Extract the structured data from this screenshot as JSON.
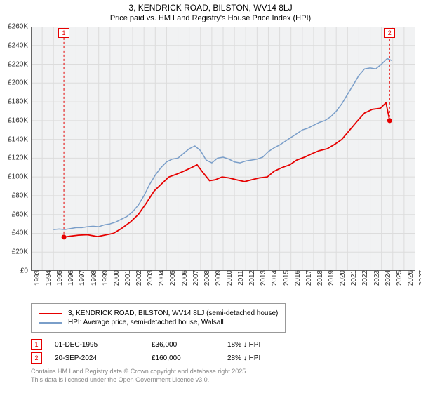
{
  "title": "3, KENDRICK ROAD, BILSTON, WV14 8LJ",
  "subtitle": "Price paid vs. HM Land Registry's House Price Index (HPI)",
  "chart": {
    "type": "line",
    "background_color": "#f1f2f3",
    "plot_border_color": "#666666",
    "grid_color": "#dcdcdc",
    "axis_font_size": 10,
    "title_font_size": 12,
    "y_axis": {
      "min": 0,
      "max": 260000,
      "tick_step": 20000,
      "format_prefix": "£",
      "format_suffix": "K",
      "format_divisor": 1000
    },
    "x_axis": {
      "min": 1993,
      "max": 2027,
      "tick_step": 1,
      "rotation": -90
    },
    "series": [
      {
        "name": "property",
        "label": "3, KENDRICK ROAD, BILSTON, WV14 8LJ (semi-detached house)",
        "color": "#e60000",
        "line_width": 1.8,
        "data": [
          [
            1995.92,
            36000
          ],
          [
            1996.5,
            37000
          ],
          [
            1997.2,
            38000
          ],
          [
            1998.0,
            38500
          ],
          [
            1998.9,
            36500
          ],
          [
            1999.5,
            38000
          ],
          [
            2000.3,
            40000
          ],
          [
            2001.0,
            45000
          ],
          [
            2001.8,
            52000
          ],
          [
            2002.5,
            60000
          ],
          [
            2003.2,
            72000
          ],
          [
            2003.9,
            85000
          ],
          [
            2004.5,
            92000
          ],
          [
            2005.2,
            100000
          ],
          [
            2005.9,
            103000
          ],
          [
            2006.5,
            106000
          ],
          [
            2007.2,
            110000
          ],
          [
            2007.7,
            113000
          ],
          [
            2008.2,
            105000
          ],
          [
            2008.8,
            96000
          ],
          [
            2009.3,
            97000
          ],
          [
            2009.9,
            100000
          ],
          [
            2010.5,
            99000
          ],
          [
            2011.2,
            97000
          ],
          [
            2011.9,
            95000
          ],
          [
            2012.5,
            97000
          ],
          [
            2013.2,
            99000
          ],
          [
            2013.9,
            100000
          ],
          [
            2014.5,
            106000
          ],
          [
            2015.2,
            110000
          ],
          [
            2015.9,
            113000
          ],
          [
            2016.5,
            118000
          ],
          [
            2017.2,
            121000
          ],
          [
            2017.9,
            125000
          ],
          [
            2018.5,
            128000
          ],
          [
            2019.2,
            130000
          ],
          [
            2019.9,
            135000
          ],
          [
            2020.5,
            140000
          ],
          [
            2021.2,
            150000
          ],
          [
            2021.9,
            160000
          ],
          [
            2022.5,
            168000
          ],
          [
            2023.2,
            172000
          ],
          [
            2023.9,
            173000
          ],
          [
            2024.4,
            179000
          ],
          [
            2024.72,
            160000
          ]
        ],
        "markers": [
          {
            "id": "1",
            "x": 1995.92,
            "y": 36000,
            "box_color": "#e60000"
          },
          {
            "id": "2",
            "x": 2024.72,
            "y": 160000,
            "box_color": "#e60000"
          }
        ]
      },
      {
        "name": "hpi",
        "label": "HPI: Average price, semi-detached house, Walsall",
        "color": "#7a9ec9",
        "line_width": 1.5,
        "data": [
          [
            1995.0,
            44000
          ],
          [
            1995.5,
            44500
          ],
          [
            1996.0,
            44000
          ],
          [
            1996.5,
            45000
          ],
          [
            1997.0,
            46000
          ],
          [
            1997.5,
            46000
          ],
          [
            1998.0,
            47000
          ],
          [
            1998.5,
            47500
          ],
          [
            1999.0,
            47000
          ],
          [
            1999.5,
            49000
          ],
          [
            2000.0,
            50000
          ],
          [
            2000.5,
            52000
          ],
          [
            2001.0,
            55000
          ],
          [
            2001.5,
            58000
          ],
          [
            2002.0,
            63000
          ],
          [
            2002.5,
            70000
          ],
          [
            2003.0,
            80000
          ],
          [
            2003.5,
            92000
          ],
          [
            2004.0,
            102000
          ],
          [
            2004.5,
            110000
          ],
          [
            2005.0,
            116000
          ],
          [
            2005.5,
            119000
          ],
          [
            2006.0,
            120000
          ],
          [
            2006.5,
            125000
          ],
          [
            2007.0,
            130000
          ],
          [
            2007.5,
            133000
          ],
          [
            2008.0,
            128000
          ],
          [
            2008.5,
            118000
          ],
          [
            2009.0,
            115000
          ],
          [
            2009.5,
            120000
          ],
          [
            2010.0,
            121000
          ],
          [
            2010.5,
            119000
          ],
          [
            2011.0,
            116000
          ],
          [
            2011.5,
            115000
          ],
          [
            2012.0,
            117000
          ],
          [
            2012.5,
            118000
          ],
          [
            2013.0,
            119000
          ],
          [
            2013.5,
            121000
          ],
          [
            2014.0,
            127000
          ],
          [
            2014.5,
            131000
          ],
          [
            2015.0,
            134000
          ],
          [
            2015.5,
            138000
          ],
          [
            2016.0,
            142000
          ],
          [
            2016.5,
            146000
          ],
          [
            2017.0,
            150000
          ],
          [
            2017.5,
            152000
          ],
          [
            2018.0,
            155000
          ],
          [
            2018.5,
            158000
          ],
          [
            2019.0,
            160000
          ],
          [
            2019.5,
            164000
          ],
          [
            2020.0,
            170000
          ],
          [
            2020.5,
            178000
          ],
          [
            2021.0,
            188000
          ],
          [
            2021.5,
            198000
          ],
          [
            2022.0,
            208000
          ],
          [
            2022.5,
            215000
          ],
          [
            2023.0,
            216000
          ],
          [
            2023.5,
            215000
          ],
          [
            2024.0,
            220000
          ],
          [
            2024.5,
            226000
          ],
          [
            2024.9,
            224000
          ]
        ]
      }
    ]
  },
  "legend": {
    "border_color": "#999999",
    "items": [
      {
        "color": "#e60000",
        "label": "3, KENDRICK ROAD, BILSTON, WV14 8LJ (semi-detached house)"
      },
      {
        "color": "#7a9ec9",
        "label": "HPI: Average price, semi-detached house, Walsall"
      }
    ]
  },
  "marker_table": [
    {
      "id": "1",
      "box_color": "#e60000",
      "date": "01-DEC-1995",
      "price": "£36,000",
      "delta": "18% ↓ HPI"
    },
    {
      "id": "2",
      "box_color": "#e60000",
      "date": "20-SEP-2024",
      "price": "£160,000",
      "delta": "28% ↓ HPI"
    }
  ],
  "footnote_line1": "Contains HM Land Registry data © Crown copyright and database right 2025.",
  "footnote_line2": "This data is licensed under the Open Government Licence v3.0."
}
